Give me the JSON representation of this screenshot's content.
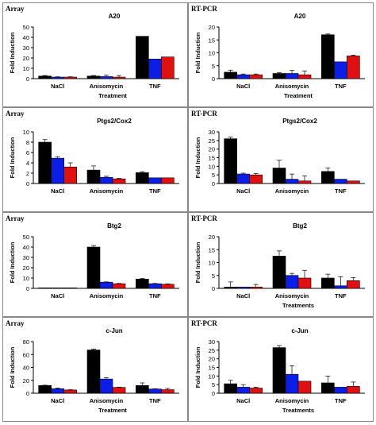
{
  "colors": {
    "series": [
      "#000000",
      "#0a1ee6",
      "#e01010"
    ]
  },
  "chart_data": [
    {
      "type": "bar",
      "panel_label": "Array",
      "title": "A20",
      "ylabel": "Fold Induction",
      "xlabel": "Treatment",
      "categories": [
        "NaCl",
        "Anisomycin",
        "TNF"
      ],
      "ylim": [
        0,
        50
      ],
      "yticks": [
        0,
        10,
        20,
        30,
        40,
        50
      ],
      "series": [
        {
          "values": [
            2.5,
            2.5,
            41
          ],
          "errors": [
            0.5,
            0.5,
            0
          ]
        },
        {
          "values": [
            1.5,
            2,
            19
          ],
          "errors": [
            0.3,
            1.5,
            0
          ]
        },
        {
          "values": [
            1.5,
            1.5,
            21
          ],
          "errors": [
            0.3,
            1.5,
            0
          ]
        }
      ]
    },
    {
      "type": "bar",
      "panel_label": "RT-PCR",
      "title": "A20",
      "ylabel": "Fold Induction",
      "xlabel": "Treatment",
      "categories": [
        "NaCl",
        "Anisomycin",
        "TNF"
      ],
      "ylim": [
        0,
        20
      ],
      "yticks": [
        0,
        5,
        10,
        15,
        20
      ],
      "series": [
        {
          "values": [
            2.5,
            2,
            17
          ],
          "errors": [
            0.8,
            0.3,
            0.3
          ]
        },
        {
          "values": [
            1.5,
            2,
            6.5
          ],
          "errors": [
            0.3,
            1.2,
            0
          ]
        },
        {
          "values": [
            1.5,
            1.5,
            8.8
          ],
          "errors": [
            0.3,
            1.5,
            0.3
          ]
        }
      ]
    },
    {
      "type": "bar",
      "panel_label": "Array",
      "title": "Ptgs2/Cox2",
      "ylabel": "Fold Induction",
      "xlabel": "",
      "categories": [
        "NaCl",
        "Anisomycin",
        "TNF"
      ],
      "ylim": [
        0,
        10
      ],
      "yticks": [
        0,
        2,
        4,
        6,
        8,
        10
      ],
      "series": [
        {
          "values": [
            8,
            2.6,
            2.1
          ],
          "errors": [
            0.5,
            0.8,
            0.2
          ]
        },
        {
          "values": [
            4.9,
            1.2,
            1.1
          ],
          "errors": [
            0.3,
            0.2,
            0
          ]
        },
        {
          "values": [
            3.2,
            0.9,
            1.1
          ],
          "errors": [
            0.8,
            0.1,
            0
          ]
        }
      ]
    },
    {
      "type": "bar",
      "panel_label": "RT-PCR",
      "title": "Ptgs2/Cox2",
      "ylabel": "Fold Induction",
      "xlabel": "",
      "categories": [
        "NaCl",
        "Anisomycin",
        "TNF"
      ],
      "ylim": [
        0,
        30
      ],
      "yticks": [
        0,
        5,
        10,
        15,
        20,
        25,
        30
      ],
      "series": [
        {
          "values": [
            26,
            9,
            7
          ],
          "errors": [
            1,
            4.5,
            2
          ]
        },
        {
          "values": [
            5.5,
            2.5,
            2.5
          ],
          "errors": [
            0.5,
            3,
            0
          ]
        },
        {
          "values": [
            5,
            1.5,
            1.5
          ],
          "errors": [
            0.8,
            3,
            0
          ]
        }
      ]
    },
    {
      "type": "bar",
      "panel_label": "Array",
      "title": "Btg2",
      "ylabel": "Fold Induction",
      "xlabel": "",
      "categories": [
        "NaCl",
        "Anisomycin",
        "TNF"
      ],
      "ylim": [
        0,
        50
      ],
      "yticks": [
        0,
        10,
        20,
        30,
        40,
        50
      ],
      "series": [
        {
          "values": [
            0.5,
            40,
            9
          ],
          "errors": [
            0,
            1.5,
            0.5
          ]
        },
        {
          "values": [
            0.5,
            6,
            4.5
          ],
          "errors": [
            0,
            0.3,
            0.3
          ]
        },
        {
          "values": [
            0.5,
            4.5,
            4
          ],
          "errors": [
            0,
            0.3,
            0.3
          ]
        }
      ]
    },
    {
      "type": "bar",
      "panel_label": "RT-PCR",
      "title": "Btg2",
      "ylabel": "Fold Induction",
      "xlabel": "Treatments",
      "categories": [
        "NaCl",
        "Anisomycin",
        "TNF"
      ],
      "ylim": [
        0,
        20
      ],
      "yticks": [
        0,
        5,
        10,
        15,
        20
      ],
      "series": [
        {
          "values": [
            0.5,
            12.5,
            4
          ],
          "errors": [
            2,
            2,
            1.5
          ]
        },
        {
          "values": [
            0.5,
            5,
            1
          ],
          "errors": [
            0,
            0.8,
            3.5
          ]
        },
        {
          "values": [
            0.5,
            4,
            3
          ],
          "errors": [
            1,
            3,
            1.2
          ]
        }
      ]
    },
    {
      "type": "bar",
      "panel_label": "Array",
      "title": "c-Jun",
      "ylabel": "Fold Induction",
      "xlabel": "Treatment",
      "categories": [
        "NaCl",
        "Anisomycin",
        "TNF"
      ],
      "ylim": [
        0,
        80
      ],
      "yticks": [
        0,
        20,
        40,
        60,
        80
      ],
      "series": [
        {
          "values": [
            12,
            67,
            12
          ],
          "errors": [
            0.5,
            1.5,
            4
          ]
        },
        {
          "values": [
            7,
            22,
            6.5
          ],
          "errors": [
            1,
            2,
            0.5
          ]
        },
        {
          "values": [
            5,
            9,
            5.5
          ],
          "errors": [
            0.5,
            0.5,
            2
          ]
        }
      ]
    },
    {
      "type": "bar",
      "panel_label": "RT-PCR",
      "title": "c-Jun",
      "ylabel": "Fold Induction",
      "xlabel": "Treatments",
      "categories": [
        "NaCl",
        "Anisomycin",
        "TNF"
      ],
      "ylim": [
        0,
        30
      ],
      "yticks": [
        0,
        5,
        10,
        15,
        20,
        25,
        30
      ],
      "series": [
        {
          "values": [
            5.5,
            26.5,
            6
          ],
          "errors": [
            2,
            1.2,
            4
          ]
        },
        {
          "values": [
            3.5,
            11,
            3.5
          ],
          "errors": [
            1.5,
            5,
            0
          ]
        },
        {
          "values": [
            3,
            7,
            4
          ],
          "errors": [
            0.5,
            0,
            2.5
          ]
        }
      ]
    }
  ]
}
